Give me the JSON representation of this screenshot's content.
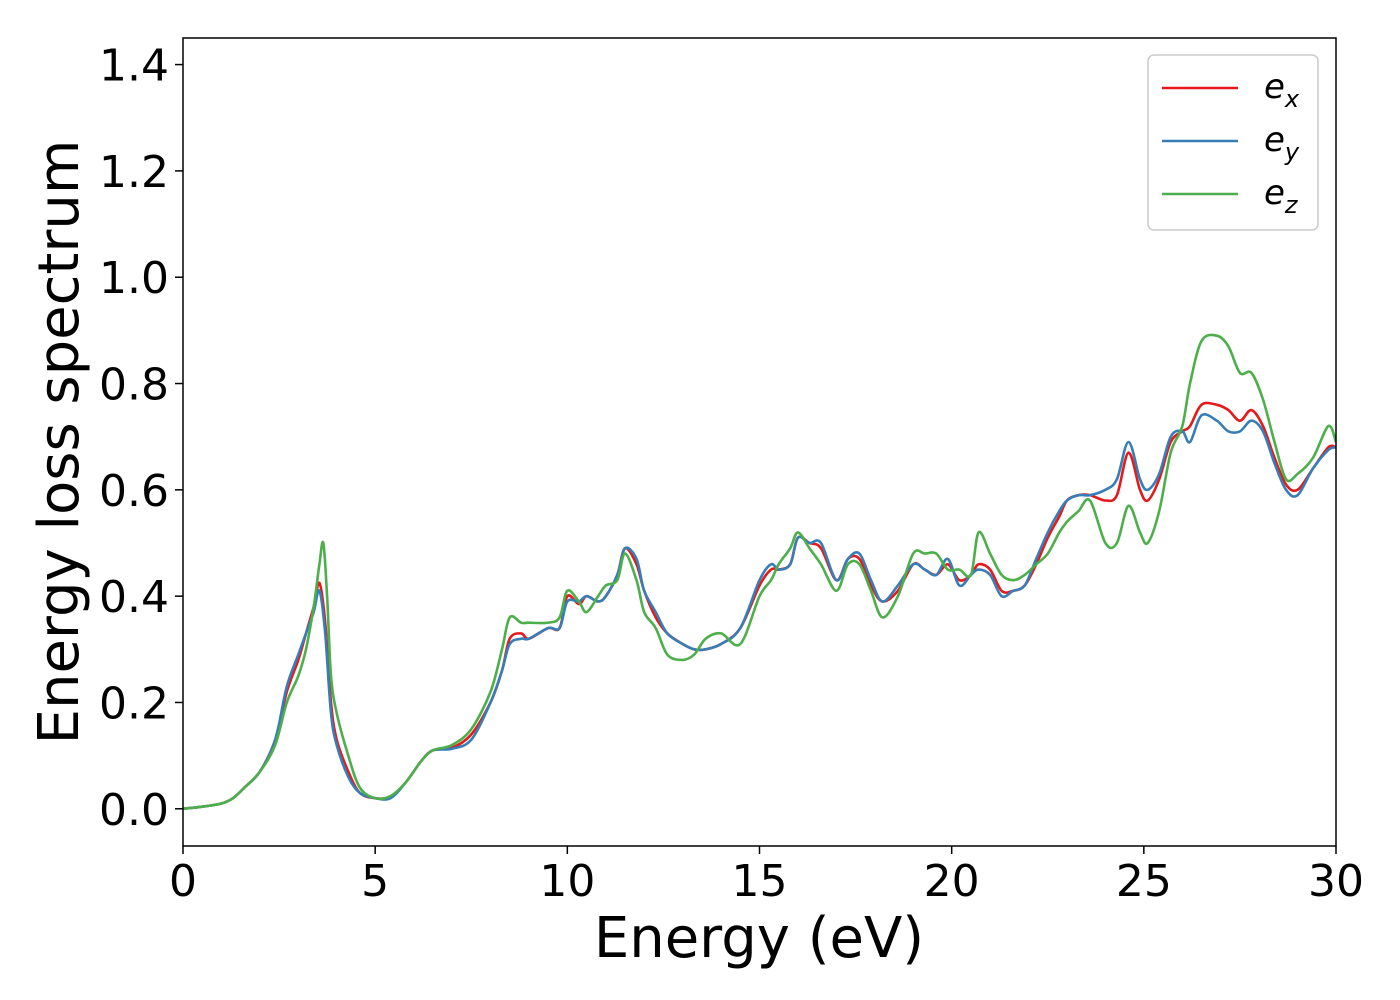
{
  "chart_data": {
    "type": "line",
    "title": "",
    "xlabel": "Energy (eV)",
    "ylabel": "Energy loss spectrum",
    "xlim": [
      0,
      30
    ],
    "ylim": [
      -0.07,
      1.45
    ],
    "xticks": [
      0,
      5,
      10,
      15,
      20,
      25,
      30
    ],
    "xtick_labels": [
      "0",
      "5",
      "10",
      "15",
      "20",
      "25",
      "30"
    ],
    "yticks": [
      0.0,
      0.2,
      0.4,
      0.6,
      0.8,
      1.0,
      1.2,
      1.4
    ],
    "ytick_labels": [
      "0.0",
      "0.2",
      "0.4",
      "0.6",
      "0.8",
      "1.0",
      "1.2",
      "1.4"
    ],
    "grid": false,
    "legend_position": "top-right",
    "series": [
      {
        "name": "e",
        "subscript": "x",
        "color": "#e41a1c",
        "x": [
          0,
          0.5,
          1,
          1.3,
          1.6,
          2.0,
          2.4,
          2.7,
          3.0,
          3.2,
          3.4,
          3.55,
          3.7,
          3.85,
          4.0,
          4.3,
          4.6,
          5.0,
          5.4,
          5.8,
          6.2,
          6.5,
          7.0,
          7.5,
          8.0,
          8.3,
          8.5,
          8.8,
          9.0,
          9.5,
          9.8,
          10.0,
          10.3,
          10.5,
          10.8,
          11.0,
          11.3,
          11.5,
          11.8,
          12.0,
          12.3,
          12.6,
          13.0,
          13.3,
          13.6,
          14.0,
          14.5,
          15.0,
          15.3,
          15.5,
          15.8,
          16.0,
          16.3,
          16.6,
          17.0,
          17.3,
          17.6,
          17.9,
          18.2,
          18.6,
          19.0,
          19.3,
          19.6,
          19.9,
          20.2,
          20.5,
          20.7,
          21.0,
          21.3,
          21.6,
          21.9,
          22.2,
          22.5,
          22.8,
          23.0,
          23.3,
          23.6,
          24.0,
          24.3,
          24.6,
          24.9,
          25.1,
          25.4,
          25.7,
          26.0,
          26.2,
          26.5,
          26.9,
          27.2,
          27.5,
          27.8,
          28.1,
          28.4,
          28.7,
          29.0,
          29.4,
          29.8,
          30.0
        ],
        "y": [
          0,
          0.004,
          0.01,
          0.02,
          0.04,
          0.07,
          0.13,
          0.22,
          0.28,
          0.33,
          0.38,
          0.425,
          0.35,
          0.2,
          0.13,
          0.07,
          0.03,
          0.02,
          0.023,
          0.05,
          0.09,
          0.11,
          0.115,
          0.14,
          0.2,
          0.26,
          0.32,
          0.33,
          0.32,
          0.34,
          0.34,
          0.4,
          0.385,
          0.4,
          0.39,
          0.4,
          0.44,
          0.49,
          0.46,
          0.41,
          0.36,
          0.33,
          0.31,
          0.3,
          0.3,
          0.31,
          0.34,
          0.42,
          0.45,
          0.45,
          0.46,
          0.51,
          0.5,
          0.49,
          0.43,
          0.47,
          0.47,
          0.42,
          0.39,
          0.41,
          0.46,
          0.45,
          0.44,
          0.46,
          0.43,
          0.44,
          0.46,
          0.45,
          0.41,
          0.41,
          0.42,
          0.46,
          0.51,
          0.55,
          0.58,
          0.59,
          0.59,
          0.58,
          0.59,
          0.67,
          0.6,
          0.58,
          0.62,
          0.69,
          0.71,
          0.72,
          0.76,
          0.76,
          0.75,
          0.73,
          0.75,
          0.72,
          0.66,
          0.61,
          0.6,
          0.64,
          0.68,
          0.68
        ]
      },
      {
        "name": "e",
        "subscript": "y",
        "color": "#377eb8",
        "x": [
          0,
          0.5,
          1,
          1.3,
          1.6,
          2.0,
          2.4,
          2.7,
          3.0,
          3.2,
          3.4,
          3.55,
          3.7,
          3.85,
          4.0,
          4.3,
          4.6,
          5.0,
          5.4,
          5.8,
          6.2,
          6.5,
          7.0,
          7.5,
          8.0,
          8.3,
          8.5,
          8.8,
          9.0,
          9.5,
          9.8,
          10.0,
          10.3,
          10.5,
          10.8,
          11.0,
          11.3,
          11.5,
          11.8,
          12.0,
          12.3,
          12.6,
          13.0,
          13.3,
          13.6,
          14.0,
          14.5,
          15.0,
          15.3,
          15.5,
          15.8,
          16.0,
          16.3,
          16.6,
          17.0,
          17.3,
          17.6,
          17.9,
          18.2,
          18.6,
          19.0,
          19.3,
          19.6,
          19.9,
          20.2,
          20.5,
          20.7,
          21.0,
          21.3,
          21.6,
          21.9,
          22.2,
          22.5,
          22.8,
          23.0,
          23.3,
          23.6,
          24.0,
          24.3,
          24.6,
          24.9,
          25.1,
          25.4,
          25.7,
          26.0,
          26.2,
          26.5,
          26.9,
          27.2,
          27.5,
          27.8,
          28.1,
          28.4,
          28.7,
          29.0,
          29.4,
          29.8,
          30.0
        ],
        "y": [
          0,
          0.004,
          0.01,
          0.02,
          0.04,
          0.07,
          0.13,
          0.23,
          0.29,
          0.33,
          0.37,
          0.41,
          0.33,
          0.18,
          0.12,
          0.06,
          0.03,
          0.02,
          0.02,
          0.05,
          0.09,
          0.11,
          0.113,
          0.13,
          0.2,
          0.26,
          0.31,
          0.32,
          0.32,
          0.34,
          0.34,
          0.39,
          0.39,
          0.4,
          0.39,
          0.4,
          0.44,
          0.49,
          0.47,
          0.41,
          0.37,
          0.33,
          0.31,
          0.3,
          0.3,
          0.31,
          0.34,
          0.43,
          0.46,
          0.45,
          0.46,
          0.51,
          0.5,
          0.5,
          0.43,
          0.47,
          0.48,
          0.43,
          0.39,
          0.42,
          0.46,
          0.45,
          0.44,
          0.47,
          0.42,
          0.44,
          0.45,
          0.44,
          0.4,
          0.41,
          0.42,
          0.47,
          0.52,
          0.56,
          0.58,
          0.59,
          0.59,
          0.6,
          0.62,
          0.69,
          0.62,
          0.6,
          0.63,
          0.7,
          0.71,
          0.69,
          0.74,
          0.73,
          0.71,
          0.71,
          0.73,
          0.71,
          0.65,
          0.6,
          0.59,
          0.64,
          0.675,
          0.68
        ]
      },
      {
        "name": "e",
        "subscript": "z",
        "color": "#4daf4a",
        "x": [
          0,
          0.5,
          1,
          1.3,
          1.6,
          2.0,
          2.4,
          2.7,
          3.0,
          3.2,
          3.4,
          3.55,
          3.65,
          3.75,
          3.85,
          4.0,
          4.3,
          4.6,
          5.0,
          5.4,
          5.8,
          6.2,
          6.5,
          7.0,
          7.5,
          8.0,
          8.3,
          8.5,
          8.8,
          9.0,
          9.5,
          9.8,
          10.0,
          10.3,
          10.5,
          10.8,
          11.0,
          11.3,
          11.5,
          11.8,
          12.0,
          12.3,
          12.6,
          13.0,
          13.3,
          13.6,
          14.0,
          14.5,
          15.0,
          15.3,
          15.5,
          15.8,
          16.0,
          16.3,
          16.6,
          17.0,
          17.3,
          17.6,
          17.9,
          18.2,
          18.6,
          19.0,
          19.3,
          19.6,
          19.9,
          20.2,
          20.5,
          20.7,
          21.0,
          21.3,
          21.6,
          21.9,
          22.2,
          22.5,
          22.8,
          23.0,
          23.3,
          23.6,
          24.0,
          24.3,
          24.6,
          24.9,
          25.1,
          25.4,
          25.7,
          26.0,
          26.2,
          26.5,
          26.9,
          27.2,
          27.5,
          27.8,
          28.1,
          28.4,
          28.7,
          29.0,
          29.4,
          29.8,
          30.0
        ],
        "y": [
          0,
          0.004,
          0.01,
          0.02,
          0.04,
          0.07,
          0.12,
          0.2,
          0.25,
          0.3,
          0.38,
          0.46,
          0.5,
          0.4,
          0.25,
          0.18,
          0.1,
          0.04,
          0.02,
          0.024,
          0.05,
          0.09,
          0.11,
          0.12,
          0.15,
          0.22,
          0.3,
          0.36,
          0.35,
          0.35,
          0.35,
          0.36,
          0.41,
          0.39,
          0.37,
          0.4,
          0.42,
          0.43,
          0.48,
          0.43,
          0.37,
          0.34,
          0.29,
          0.28,
          0.29,
          0.32,
          0.33,
          0.31,
          0.4,
          0.43,
          0.46,
          0.49,
          0.52,
          0.49,
          0.46,
          0.41,
          0.46,
          0.46,
          0.41,
          0.36,
          0.4,
          0.48,
          0.48,
          0.48,
          0.45,
          0.45,
          0.44,
          0.52,
          0.48,
          0.44,
          0.43,
          0.44,
          0.46,
          0.48,
          0.52,
          0.54,
          0.56,
          0.58,
          0.5,
          0.5,
          0.57,
          0.52,
          0.5,
          0.56,
          0.67,
          0.72,
          0.8,
          0.88,
          0.89,
          0.87,
          0.82,
          0.82,
          0.77,
          0.69,
          0.62,
          0.63,
          0.66,
          0.72,
          0.69
        ]
      }
    ]
  }
}
